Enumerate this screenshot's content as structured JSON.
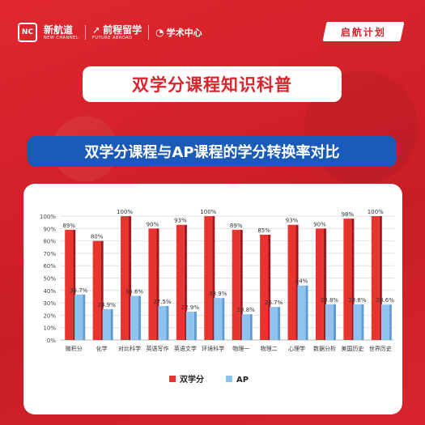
{
  "header": {
    "logo1_mark": "NC",
    "logo1_cn": "新航道",
    "logo1_en": "NEW CHANNEL",
    "logo2_cn": "前程留学",
    "logo2_en": "FUTURE ABROAD",
    "logo3_cn": "学术中心",
    "tag": "启航计划"
  },
  "main_title": "双学分课程知识科普",
  "sub_title": "双学分课程与AP课程的学分转换率对比",
  "colors": {
    "series1": "#e8342f",
    "series2": "#8ec3f0",
    "accent": "#d8252d",
    "navy": "#1a5ab8"
  },
  "chart_data": {
    "type": "bar",
    "categories": [
      "微积分",
      "化学",
      "对比科学",
      "英语写作",
      "英语文学",
      "环境科学",
      "物理一",
      "物理二",
      "心理学",
      "数据分析",
      "美国历史",
      "世界历史"
    ],
    "series": [
      {
        "name": "双学分",
        "values": [
          89,
          80,
          100,
          90,
          93,
          100,
          89,
          85,
          93,
          90,
          98,
          100
        ],
        "labels": [
          "89%",
          "80%",
          "100%",
          "90%",
          "93%",
          "100%",
          "89%",
          "85%",
          "93%",
          "90%",
          "98%",
          "100%"
        ]
      },
      {
        "name": "AP",
        "values": [
          36.7,
          24.9,
          35.6,
          27.5,
          22.9,
          33.9,
          20.8,
          26.7,
          44,
          28.8,
          28.8,
          28.6
        ],
        "labels": [
          "36.7%",
          "24.9%",
          "35.6%",
          "27.5%",
          "22.9%",
          "33.9%",
          "20.8%",
          "26.7%",
          "44%",
          "28.8%",
          "28.8%",
          "28.6%"
        ]
      }
    ],
    "yticks": [
      "0%",
      "10%",
      "20%",
      "30%",
      "40%",
      "50%",
      "60%",
      "70%",
      "80%",
      "90%",
      "100%"
    ],
    "ylim": [
      0,
      100
    ],
    "grid": true,
    "legend": "bottom"
  }
}
